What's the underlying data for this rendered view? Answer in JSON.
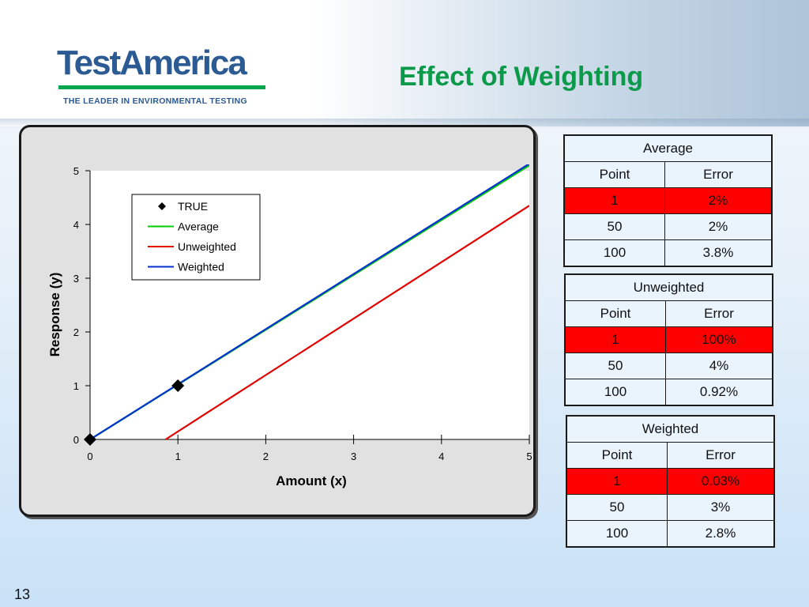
{
  "header": {
    "logo_text": "TestAmerica",
    "logo_tagline": "THE LEADER IN ENVIRONMENTAL TESTING",
    "title": "Effect of Weighting"
  },
  "slide_number": "13",
  "colors": {
    "title": "#0a9a4a",
    "logo": "#2c5a93",
    "highlight": "#ff0000"
  },
  "chart_data": {
    "type": "line",
    "xlabel": "Amount (x)",
    "ylabel": "Response (y)",
    "xlim": [
      0,
      5
    ],
    "ylim": [
      0,
      5
    ],
    "x_ticks": [
      "0",
      "1",
      "2",
      "3",
      "4",
      "5"
    ],
    "y_ticks": [
      "0",
      "1",
      "2",
      "3",
      "4",
      "5"
    ],
    "legend": {
      "position": "top-left"
    },
    "series": [
      {
        "name": "TRUE",
        "kind": "scatter",
        "marker": "diamond",
        "color": "#000000",
        "points": [
          [
            0,
            0
          ],
          [
            1,
            1
          ]
        ]
      },
      {
        "name": "Average",
        "kind": "line",
        "color": "#00cc00",
        "points": [
          [
            0,
            0
          ],
          [
            5,
            5.1
          ]
        ]
      },
      {
        "name": "Unweighted",
        "kind": "line",
        "color": "#e00000",
        "points": [
          [
            0.86,
            0
          ],
          [
            5,
            4.35
          ]
        ]
      },
      {
        "name": "Weighted",
        "kind": "line",
        "color": "#0033cc",
        "points": [
          [
            0,
            0
          ],
          [
            5,
            5.13
          ]
        ]
      }
    ]
  },
  "tables": [
    {
      "title": "Average",
      "headers": [
        "Point",
        "Error"
      ],
      "rows": [
        [
          "1",
          "2%"
        ],
        [
          "50",
          "2%"
        ],
        [
          "100",
          "3.8%"
        ]
      ],
      "highlight_row": 0
    },
    {
      "title": "Unweighted",
      "headers": [
        "Point",
        "Error"
      ],
      "rows": [
        [
          "1",
          "100%"
        ],
        [
          "50",
          "4%"
        ],
        [
          "100",
          "0.92%"
        ]
      ],
      "highlight_row": 0
    },
    {
      "title": "Weighted",
      "headers": [
        "Point",
        "Error"
      ],
      "rows": [
        [
          "1",
          "0.03%"
        ],
        [
          "50",
          "3%"
        ],
        [
          "100",
          "2.8%"
        ]
      ],
      "highlight_row": 0
    }
  ]
}
